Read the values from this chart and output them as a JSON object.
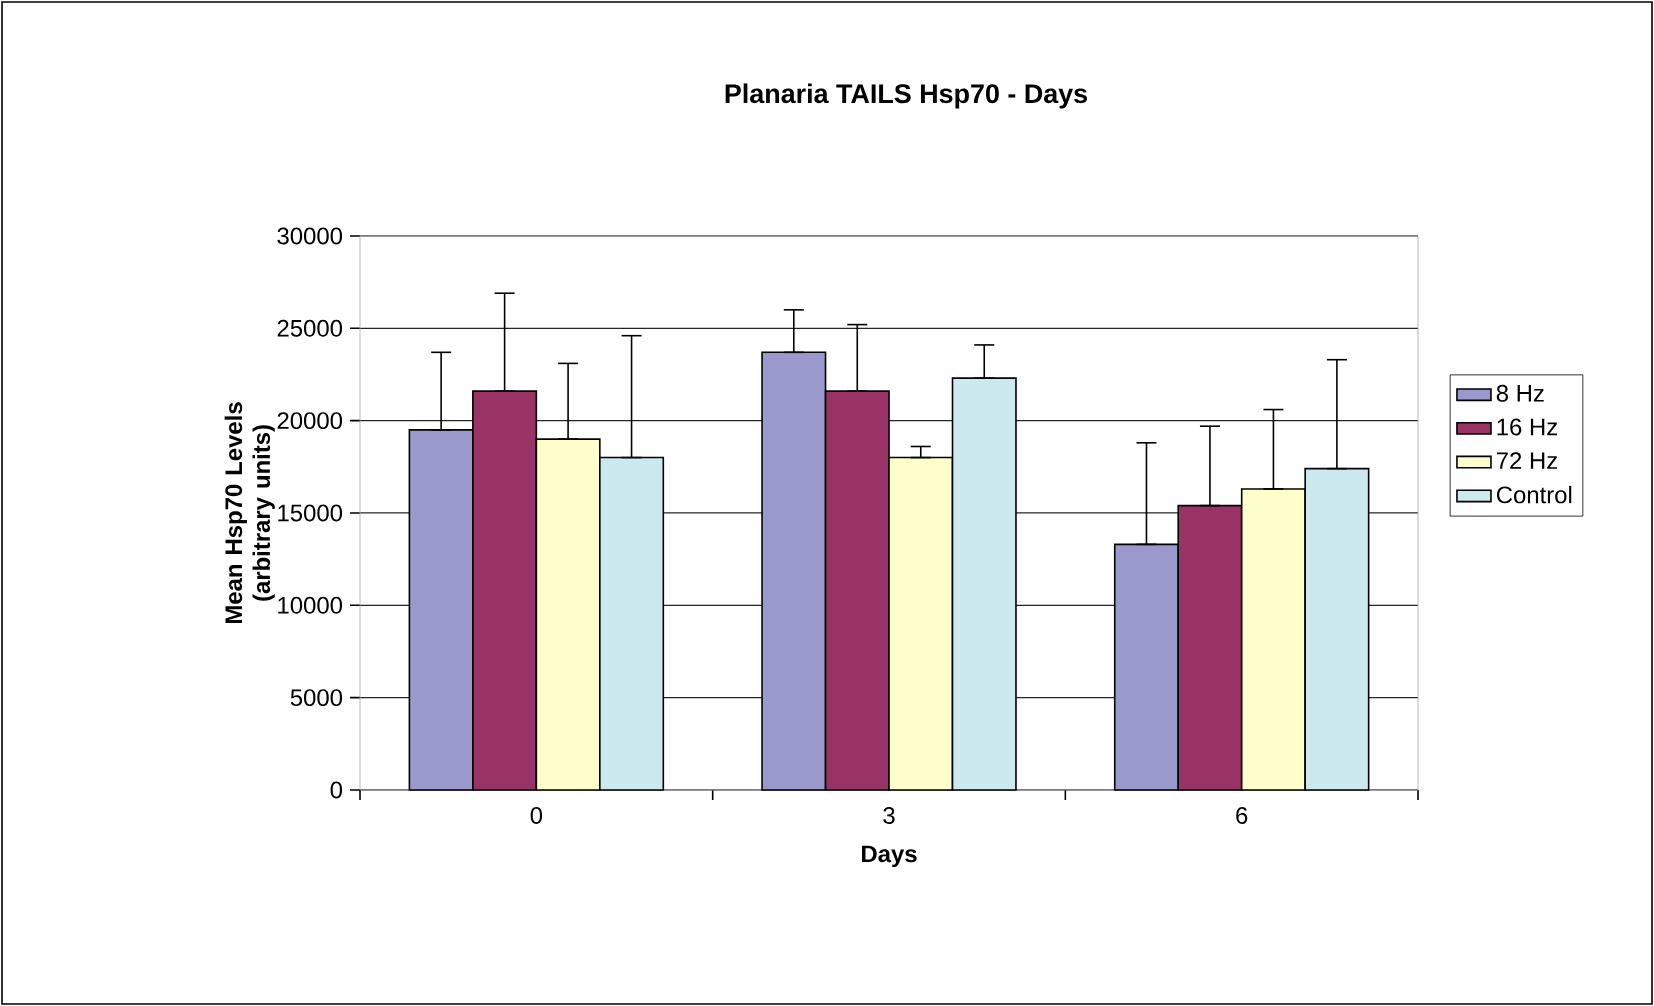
{
  "chart_data": {
    "type": "bar",
    "title": "Planaria TAILS Hsp70 - Days",
    "xlabel": "Days",
    "ylabel": "Mean Hsp70 Levels (arbitrary units)",
    "categories": [
      "0",
      "3",
      "6"
    ],
    "series": [
      {
        "name": "8 Hz",
        "color": "#9999cc",
        "values": [
          19500,
          23700,
          13300
        ],
        "errors": [
          [
            19500,
            23700
          ],
          [
            23700,
            26000
          ],
          [
            13300,
            18800
          ]
        ]
      },
      {
        "name": "16 Hz",
        "color": "#993366",
        "values": [
          21600,
          21600,
          15400
        ],
        "errors": [
          [
            21600,
            26900
          ],
          [
            21600,
            25200
          ],
          [
            15400,
            19700
          ]
        ]
      },
      {
        "name": "72 Hz",
        "color": "#ffffcc",
        "values": [
          19000,
          18000,
          16300
        ],
        "errors": [
          [
            19000,
            23100
          ],
          [
            18000,
            18600
          ],
          [
            16300,
            20600
          ]
        ]
      },
      {
        "name": "Control",
        "color": "#cce9ef",
        "values": [
          18000,
          22300,
          17400
        ],
        "errors": [
          [
            18000,
            24600
          ],
          [
            22300,
            24100
          ],
          [
            17400,
            23300
          ]
        ]
      }
    ],
    "ylim": [
      0,
      30000
    ],
    "yticks": [
      0,
      5000,
      10000,
      15000,
      20000,
      25000,
      30000
    ],
    "grid": "y",
    "legend": "right"
  }
}
